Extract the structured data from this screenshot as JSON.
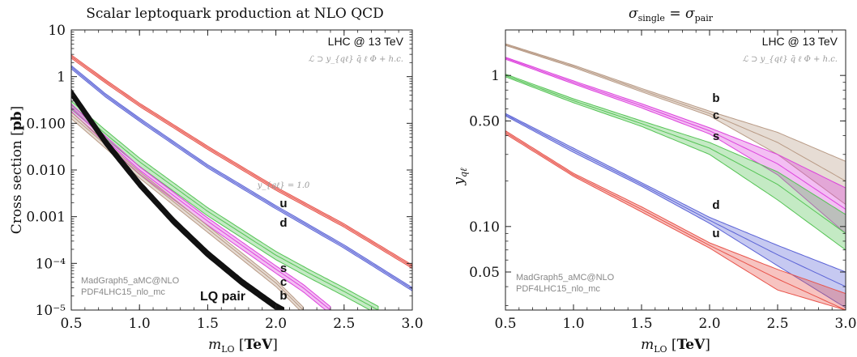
{
  "chart_data": [
    {
      "type": "line",
      "title": "Scalar leptoquark production at NLO QCD",
      "xlabel_var": "m",
      "xlabel_sub": "LO",
      "xlabel_unit": "TeV",
      "ylabel_text": "Cross section ",
      "ylabel_unit": "pb",
      "x_scale": "linear",
      "y_scale": "log",
      "xlim": [
        0.5,
        3.0
      ],
      "ylim": [
        1e-05,
        10
      ],
      "x_ticks": [
        0.5,
        1.0,
        1.5,
        2.0,
        2.5,
        3.0
      ],
      "x_tick_labels": [
        "0.5",
        "1.0",
        "1.5",
        "2.0",
        "2.5",
        "3.0"
      ],
      "y_ticks": [
        1e-05,
        0.0001,
        0.001,
        0.01,
        0.1,
        1,
        10
      ],
      "y_tick_labels": [
        "10⁻⁵",
        "10⁻⁴",
        "0.001",
        "0.010",
        "0.100",
        "1",
        "10"
      ],
      "box_label": "LHC @ 13 TeV",
      "lagrangian_label": "ℒ ⊃ y_{qℓ} q̄ ℓ Φ + h.c.",
      "coupling_label": "y_{qℓ} = 1.0",
      "credits": [
        "MadGraph5_aMC@NLO",
        "PDF4LHC15_nlo_mc"
      ],
      "grid": false,
      "series": [
        {
          "name": "u",
          "color": "#e8534a",
          "x": [
            0.5,
            0.75,
            1.0,
            1.5,
            2.0,
            2.5,
            3.0
          ],
          "y": [
            2.7,
            0.8,
            0.25,
            0.03,
            0.004,
            0.00065,
            8.5e-05
          ],
          "band": 0.08
        },
        {
          "name": "d",
          "color": "#5b63d6",
          "x": [
            0.5,
            0.75,
            1.0,
            1.5,
            2.0,
            2.5,
            3.0
          ],
          "y": [
            1.6,
            0.4,
            0.12,
            0.012,
            0.0016,
            0.00023,
            2.8e-05
          ],
          "band": 0.08
        },
        {
          "name": "s",
          "color": "#55c455",
          "x": [
            0.5,
            0.75,
            1.0,
            1.5,
            2.0,
            2.25,
            2.5,
            2.75
          ],
          "y": [
            0.25,
            0.06,
            0.015,
            0.0013,
            0.00015,
            6e-05,
            2.5e-05,
            1e-05
          ],
          "band": 0.2
        },
        {
          "name": "c",
          "color": "#dd44dd",
          "x": [
            0.5,
            0.75,
            1.0,
            1.5,
            2.0,
            2.2,
            2.4
          ],
          "y": [
            0.22,
            0.045,
            0.01,
            0.0008,
            7.5e-05,
            3e-05,
            1e-05
          ],
          "band": 0.18
        },
        {
          "name": "b",
          "color": "#b89a85",
          "x": [
            0.5,
            0.75,
            1.0,
            1.5,
            2.0,
            2.2
          ],
          "y": [
            0.15,
            0.035,
            0.008,
            0.00055,
            3.8e-05,
            1e-05
          ],
          "band": 0.16
        },
        {
          "name": "LQ pair",
          "color": "#111111",
          "x": [
            0.5,
            0.75,
            1.0,
            1.25,
            1.5,
            1.75,
            2.0,
            2.05
          ],
          "y": [
            0.45,
            0.04,
            0.005,
            0.0008,
            0.00016,
            4e-05,
            1.2e-05,
            1e-05
          ],
          "band": 0.09
        }
      ]
    },
    {
      "type": "line",
      "title_main": "σ",
      "title_sub1": "single",
      "title_mid": " = σ",
      "title_sub2": "pair",
      "xlabel_var": "m",
      "xlabel_sub": "LO",
      "xlabel_unit": "TeV",
      "ylabel_var": "y",
      "ylabel_sub": "qℓ",
      "x_scale": "linear",
      "y_scale": "log",
      "xlim": [
        0.5,
        3.0
      ],
      "ylim": [
        0.028,
        2.0
      ],
      "x_ticks": [
        0.5,
        1.0,
        1.5,
        2.0,
        2.5,
        3.0
      ],
      "x_tick_labels": [
        "0.5",
        "1.0",
        "1.5",
        "2.0",
        "2.5",
        "3.0"
      ],
      "y_ticks": [
        0.05,
        0.1,
        0.5,
        1
      ],
      "y_tick_labels": [
        "0.05",
        "0.10",
        "0.50",
        "1"
      ],
      "box_label": "LHC @ 13 TeV",
      "lagrangian_label": "ℒ ⊃ y_{qℓ} q̄ ℓ Φ + h.c.",
      "credits": [
        "MadGraph5_aMC@NLO",
        "PDF4LHC15_nlo_mc"
      ],
      "grid": false,
      "series": [
        {
          "name": "b",
          "color": "#b89a85",
          "x": [
            0.5,
            1.0,
            1.5,
            2.0,
            2.5,
            3.0
          ],
          "y": [
            1.6,
            1.15,
            0.8,
            0.56,
            0.36,
            0.2
          ],
          "band_lo": [
            1.58,
            1.13,
            0.78,
            0.54,
            0.3,
            0.14
          ],
          "band_hi": [
            1.62,
            1.17,
            0.82,
            0.58,
            0.42,
            0.27
          ]
        },
        {
          "name": "c",
          "color": "#dd44dd",
          "x": [
            0.5,
            1.0,
            1.5,
            2.0,
            2.5,
            3.0
          ],
          "y": [
            1.3,
            0.9,
            0.63,
            0.43,
            0.26,
            0.13
          ],
          "band_lo": [
            1.28,
            0.88,
            0.61,
            0.41,
            0.22,
            0.09
          ],
          "band_hi": [
            1.32,
            0.92,
            0.65,
            0.45,
            0.3,
            0.18
          ]
        },
        {
          "name": "s",
          "color": "#55c455",
          "x": [
            0.5,
            1.0,
            1.5,
            2.0,
            2.5,
            3.0
          ],
          "y": [
            1.0,
            0.68,
            0.48,
            0.33,
            0.19,
            0.09
          ],
          "band_lo": [
            0.98,
            0.66,
            0.46,
            0.3,
            0.15,
            0.07
          ],
          "band_hi": [
            1.02,
            0.7,
            0.5,
            0.36,
            0.23,
            0.12
          ]
        },
        {
          "name": "d",
          "color": "#5b63d6",
          "x": [
            0.5,
            1.0,
            1.5,
            2.0,
            2.5,
            3.0
          ],
          "y": [
            0.55,
            0.32,
            0.19,
            0.11,
            0.065,
            0.04
          ],
          "band_lo": [
            0.54,
            0.31,
            0.185,
            0.105,
            0.055,
            0.029
          ],
          "band_hi": [
            0.56,
            0.33,
            0.195,
            0.115,
            0.075,
            0.05
          ]
        },
        {
          "name": "u",
          "color": "#e8534a",
          "x": [
            0.5,
            1.0,
            1.5,
            2.0,
            2.5,
            3.0
          ],
          "y": [
            0.42,
            0.22,
            0.13,
            0.075,
            0.045,
            0.028
          ],
          "band_lo": [
            0.41,
            0.215,
            0.125,
            0.072,
            0.038,
            0.028
          ],
          "band_hi": [
            0.43,
            0.225,
            0.135,
            0.078,
            0.052,
            0.036
          ]
        }
      ]
    }
  ]
}
